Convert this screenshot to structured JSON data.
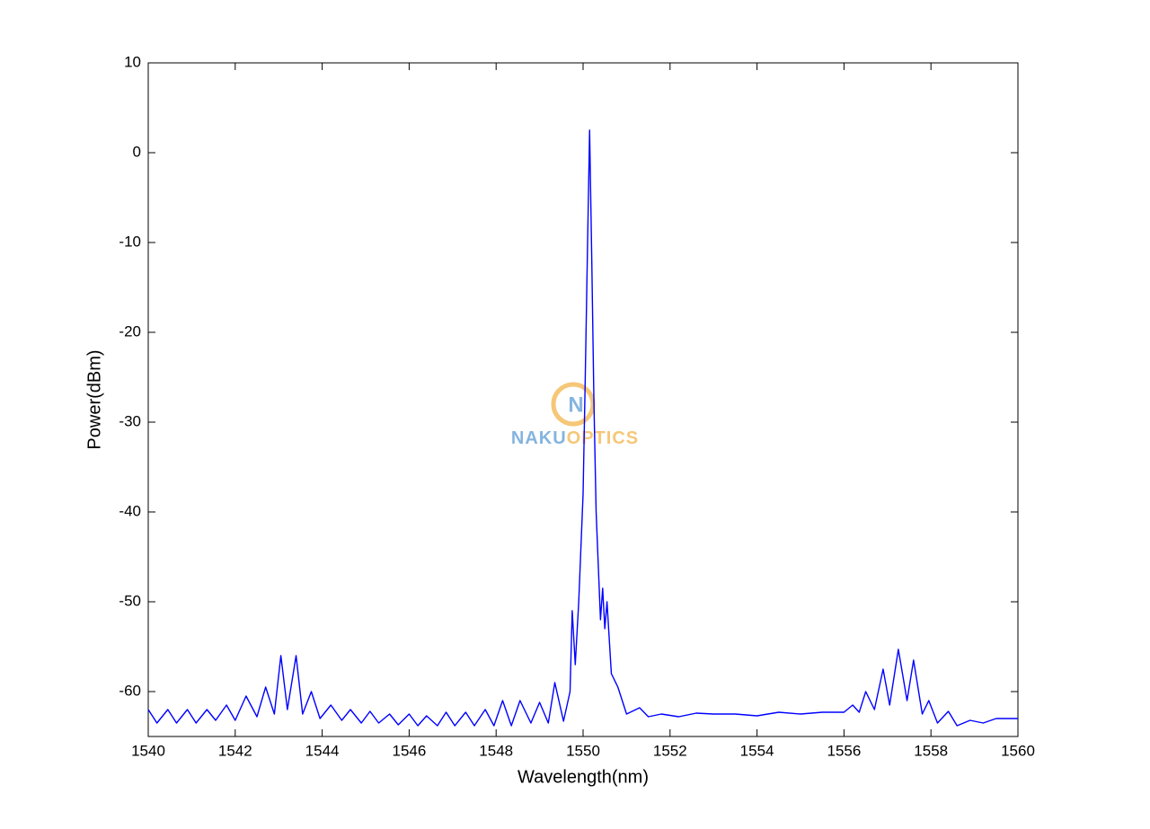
{
  "chart_data": {
    "type": "line",
    "x_label": "Wavelength(nm)",
    "y_label": "Power(dBm)",
    "color": "#0000ff",
    "x": [
      1540.0,
      1540.2,
      1540.45,
      1540.65,
      1540.9,
      1541.1,
      1541.35,
      1541.55,
      1541.8,
      1542.0,
      1542.25,
      1542.5,
      1542.7,
      1542.9,
      1543.05,
      1543.2,
      1543.4,
      1543.55,
      1543.75,
      1543.95,
      1544.2,
      1544.45,
      1544.65,
      1544.9,
      1545.1,
      1545.3,
      1545.55,
      1545.75,
      1546.0,
      1546.2,
      1546.4,
      1546.65,
      1546.85,
      1547.05,
      1547.3,
      1547.5,
      1547.75,
      1547.95,
      1548.15,
      1548.35,
      1548.55,
      1548.8,
      1549.0,
      1549.2,
      1549.35,
      1549.55,
      1549.7,
      1549.75,
      1549.82,
      1549.9,
      1550.0,
      1550.05,
      1550.1,
      1550.15,
      1550.2,
      1550.25,
      1550.3,
      1550.4,
      1550.45,
      1550.5,
      1550.55,
      1550.65,
      1550.8,
      1551.0,
      1551.3,
      1551.5,
      1551.8,
      1552.2,
      1552.6,
      1553.0,
      1553.5,
      1554.0,
      1554.5,
      1555.0,
      1555.5,
      1556.0,
      1556.2,
      1556.35,
      1556.5,
      1556.7,
      1556.9,
      1557.05,
      1557.25,
      1557.45,
      1557.6,
      1557.8,
      1557.95,
      1558.15,
      1558.4,
      1558.6,
      1558.9,
      1559.2,
      1559.5,
      1560.0
    ],
    "values": [
      -62,
      -63.5,
      -62,
      -63.5,
      -62,
      -63.5,
      -62,
      -63.2,
      -61.5,
      -63.2,
      -60.5,
      -62.8,
      -59.5,
      -62.5,
      -56,
      -62,
      -56,
      -62.5,
      -60,
      -63,
      -61.5,
      -63.2,
      -62,
      -63.5,
      -62.2,
      -63.5,
      -62.5,
      -63.7,
      -62.5,
      -63.8,
      -62.7,
      -63.8,
      -62.3,
      -63.8,
      -62.3,
      -63.8,
      -62,
      -63.8,
      -61,
      -63.8,
      -61,
      -63.5,
      -61.2,
      -63.5,
      -59,
      -63.3,
      -60,
      -51,
      -57,
      -50,
      -38,
      -25,
      -11,
      2.5,
      -12,
      -28,
      -40,
      -52,
      -48.5,
      -53,
      -50,
      -58,
      -59.5,
      -62.5,
      -61.8,
      -62.8,
      -62.5,
      -62.8,
      -62.4,
      -62.5,
      -62.5,
      -62.7,
      -62.3,
      -62.5,
      -62.3,
      -62.3,
      -61.5,
      -62.3,
      -60,
      -62,
      -57.5,
      -61.5,
      -55.3,
      -61,
      -56.5,
      -62.5,
      -61,
      -63.5,
      -62.2,
      -63.8,
      -63.2,
      -63.5,
      -63,
      -63
    ],
    "xlim": [
      1540,
      1560
    ],
    "xticks": [
      1540,
      1542,
      1544,
      1546,
      1548,
      1550,
      1552,
      1554,
      1556,
      1558,
      1560
    ],
    "ylim": [
      -65,
      10
    ],
    "yticks": [
      -60,
      -50,
      -40,
      -30,
      -20,
      -10,
      0,
      10
    ],
    "grid": false
  },
  "watermark": {
    "logo_letter": "N",
    "brand_part_1": "NAKU",
    "brand_part_2": "OPTICS"
  }
}
